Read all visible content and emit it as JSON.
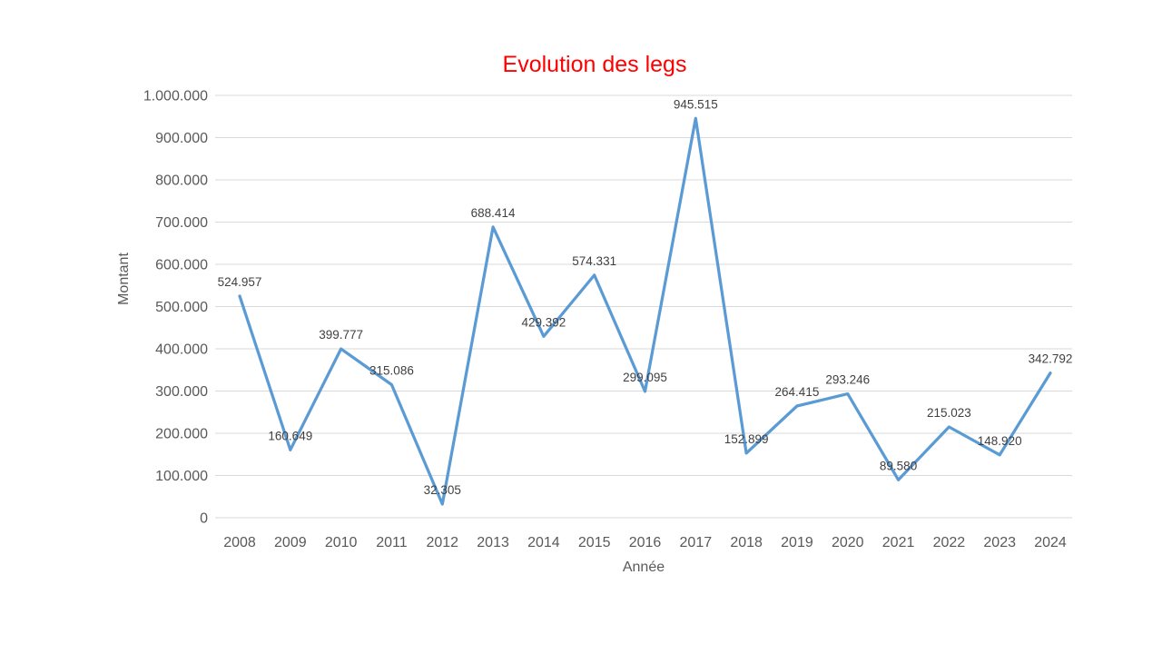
{
  "chart_data": {
    "type": "line",
    "title": "Evolution des legs",
    "xlabel": "Année",
    "ylabel": "Montant",
    "categories": [
      "2008",
      "2009",
      "2010",
      "2011",
      "2012",
      "2013",
      "2014",
      "2015",
      "2016",
      "2017",
      "2018",
      "2019",
      "2020",
      "2021",
      "2022",
      "2023",
      "2024"
    ],
    "values": [
      524957,
      160649,
      399777,
      315086,
      32305,
      688414,
      429392,
      574331,
      299095,
      945515,
      152899,
      264415,
      293246,
      89580,
      215023,
      148920,
      342792
    ],
    "point_labels": [
      "524.957",
      "160.649",
      "399.777",
      "315.086",
      "32.305",
      "688.414",
      "429.392",
      "574.331",
      "299.095",
      "945.515",
      "152.899",
      "264.415",
      "293.246",
      "89.580",
      "215.023",
      "148.920",
      "342.792"
    ],
    "y_tick_labels": [
      "0",
      "100.000",
      "200.000",
      "300.000",
      "400.000",
      "500.000",
      "600.000",
      "700.000",
      "800.000",
      "900.000",
      "1.000.000"
    ],
    "ylim": [
      0,
      1000000
    ],
    "grid": true,
    "legend": "none",
    "colors": {
      "line": "#5B9BD5",
      "title": "#FF0000",
      "tick_label": "#595959",
      "axis_title": "#595959",
      "data_label": "#404040",
      "gridline": "#D9D9D9",
      "background": "#FFFFFF"
    }
  }
}
